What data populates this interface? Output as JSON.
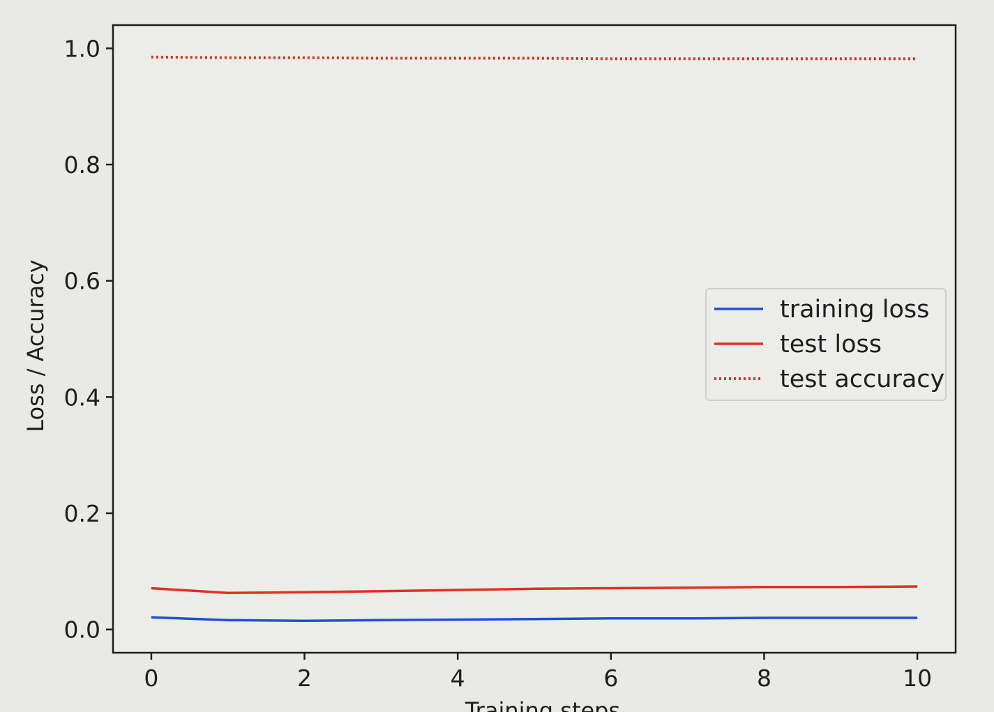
{
  "chart_data": {
    "type": "line",
    "title": "",
    "xlabel": "Training steps",
    "ylabel": "Loss / Accuracy",
    "x": [
      0,
      1,
      2,
      3,
      4,
      5,
      6,
      7,
      8,
      9,
      10
    ],
    "xlim": [
      -0.5,
      10.5
    ],
    "ylim": [
      -0.04,
      1.04
    ],
    "xticks": [
      0,
      2,
      4,
      6,
      8,
      10
    ],
    "yticks": [
      0.0,
      0.2,
      0.4,
      0.6,
      0.8,
      1.0
    ],
    "xtick_labels": [
      "0",
      "2",
      "4",
      "6",
      "8",
      "10"
    ],
    "ytick_labels": [
      "0.0",
      "0.2",
      "0.4",
      "0.6",
      "0.8",
      "1.0"
    ],
    "grid": false,
    "legend_position": "center-right",
    "series": [
      {
        "name": "training loss",
        "color": "#1f4fd8",
        "style": "solid",
        "values": [
          0.021,
          0.016,
          0.015,
          0.016,
          0.017,
          0.018,
          0.019,
          0.019,
          0.02,
          0.02,
          0.02
        ]
      },
      {
        "name": "test loss",
        "color": "#e0301e",
        "style": "solid",
        "values": [
          0.071,
          0.063,
          0.064,
          0.066,
          0.068,
          0.07,
          0.071,
          0.072,
          0.073,
          0.073,
          0.074
        ]
      },
      {
        "name": "test accuracy",
        "color": "#e0301e",
        "style": "dotted",
        "values": [
          0.985,
          0.984,
          0.984,
          0.983,
          0.983,
          0.983,
          0.982,
          0.982,
          0.982,
          0.982,
          0.982
        ]
      }
    ]
  }
}
